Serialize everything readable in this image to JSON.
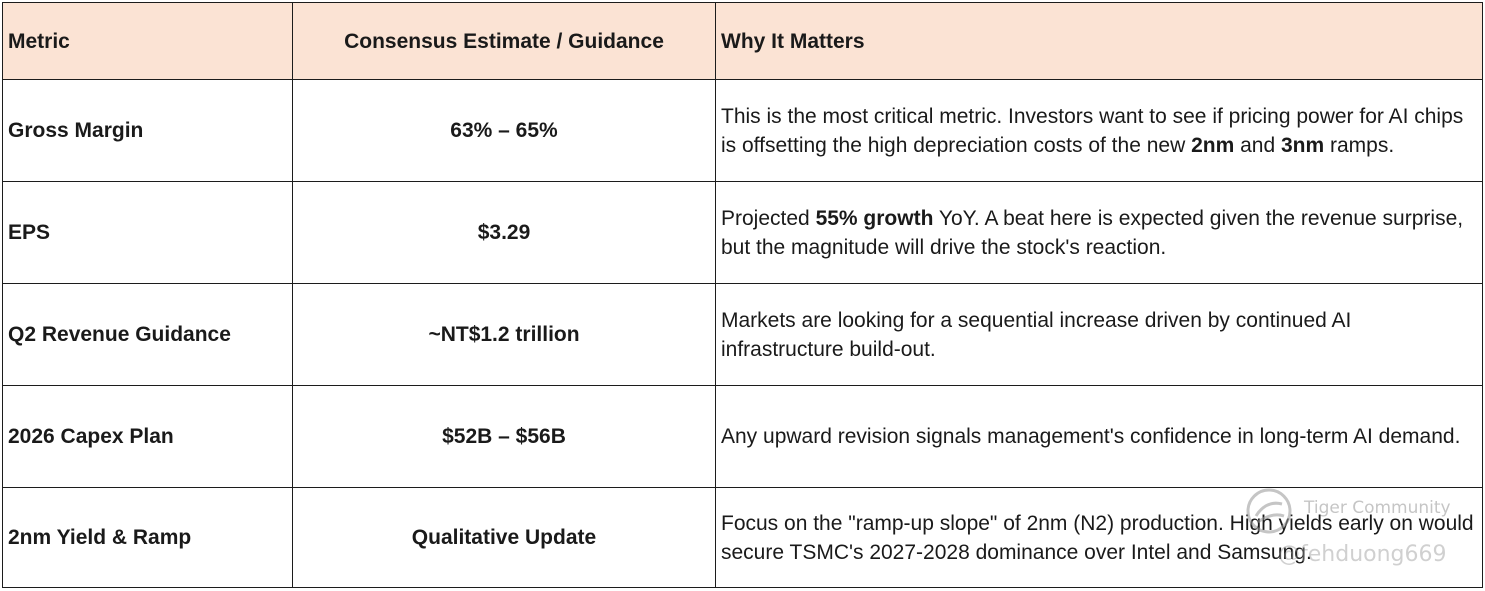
{
  "table": {
    "headers": [
      "Metric",
      "Consensus Estimate / Guidance",
      "Why It Matters"
    ],
    "rows": [
      {
        "metric": "Gross Margin",
        "value": "63% – 65%",
        "why": [
          {
            "text": "This is the most critical metric. Investors want to see if pricing power for AI chips is offsetting the high depreciation costs of the new ",
            "bold": false
          },
          {
            "text": "2nm",
            "bold": true
          },
          {
            "text": " and ",
            "bold": false
          },
          {
            "text": "3nm",
            "bold": true
          },
          {
            "text": " ramps.",
            "bold": false
          }
        ]
      },
      {
        "metric": "EPS",
        "value": "$3.29",
        "why": [
          {
            "text": "Projected ",
            "bold": false
          },
          {
            "text": "55% growth",
            "bold": true
          },
          {
            "text": " YoY. A beat here is expected given the revenue surprise, but the magnitude will drive the stock's reaction.",
            "bold": false
          }
        ]
      },
      {
        "metric": "Q2 Revenue Guidance",
        "value": "~NT$1.2 trillion",
        "why": [
          {
            "text": "Markets are looking for a sequential increase driven by continued AI infrastructure build-out.",
            "bold": false
          }
        ]
      },
      {
        "metric": "2026 Capex Plan",
        "value": "$52B – $56B",
        "why": [
          {
            "text": "Any upward revision signals management's confidence in long-term AI demand.",
            "bold": false
          }
        ]
      },
      {
        "metric": "2nm Yield & Ramp",
        "value": "Qualitative Update",
        "why": [
          {
            "text": "Focus on the \"ramp-up slope\" of 2nm (N2) production. High yields early on would secure TSMC's 2027-2028 dominance over Intel and Samsung.",
            "bold": false
          }
        ]
      }
    ]
  },
  "watermark": {
    "brand": "Tiger Community",
    "handle": "@fehduong669",
    "icon": "tiger-community-logo-icon"
  }
}
